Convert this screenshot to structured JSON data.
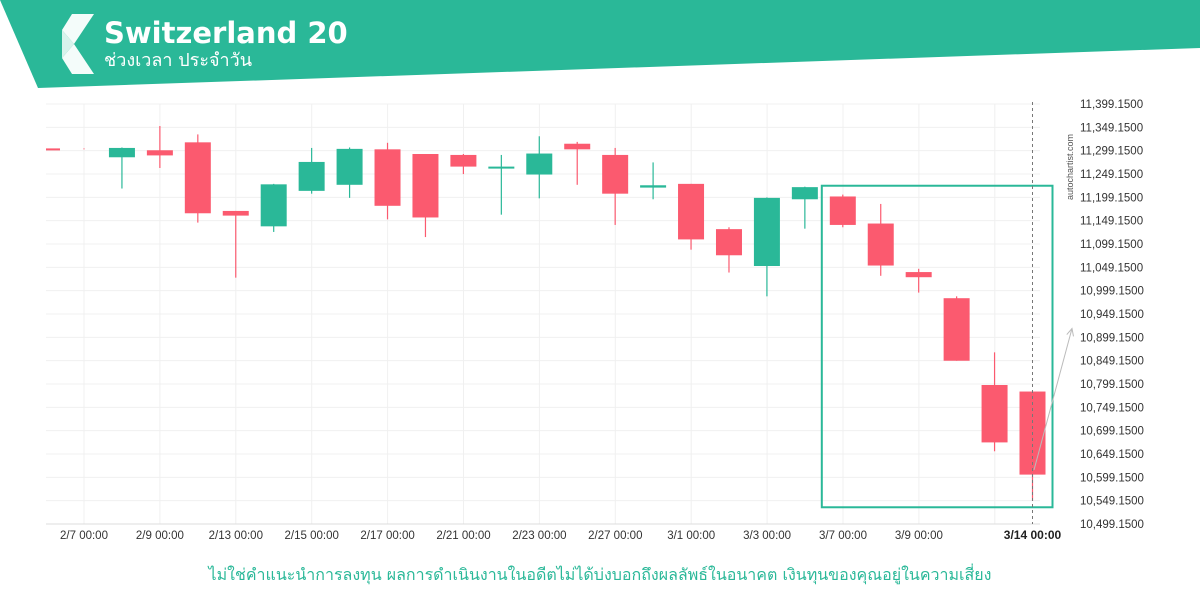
{
  "header": {
    "title": "Switzerland 20",
    "subtitle": "ช่วงเวลา ประจำวัน",
    "brand_color": "#2ab898"
  },
  "watermark": "autochartist.com",
  "disclaimer": "ไม่ใช่คำแนะนำการลงทุน ผลการดำเนินงานในอดีตไม่ได้บ่งบอกถึงผลลัพธ์ในอนาคต เงินทุนของคุณอยู่ในความเสี่ยง",
  "colors": {
    "up": "#2ab898",
    "down": "#fb5a6f",
    "pattern_box": "#2ab898",
    "grid": "#f0f0f0",
    "arrow": "#bbbbbb"
  },
  "chart_data": {
    "type": "candlestick",
    "y_axis": {
      "min": 10499.15,
      "max": 11399.15,
      "ticks": [
        "11,399.1500",
        "11,349.1500",
        "11,299.1500",
        "11,249.1500",
        "11,199.1500",
        "11,149.1500",
        "11,099.1500",
        "11,049.1500",
        "10,999.1500",
        "10,949.1500",
        "10,899.1500",
        "10,849.1500",
        "10,799.1500",
        "10,749.1500",
        "10,699.1500",
        "10,649.1500",
        "10,599.1500",
        "10,549.1500",
        "10,499.1500"
      ]
    },
    "x_labels": [
      "2/7 00:00",
      "2/9 00:00",
      "2/13 00:00",
      "2/15 00:00",
      "2/17 00:00",
      "2/21 00:00",
      "2/23 00:00",
      "2/27 00:00",
      "3/1 00:00",
      "3/3 00:00",
      "3/7 00:00",
      "3/9 00:00",
      "3/14 00:00"
    ],
    "candles": [
      {
        "open": 11304,
        "high": 11304,
        "low": 11302,
        "close": 11302
      },
      {
        "open": 11285,
        "high": 11306,
        "low": 11218,
        "close": 11305
      },
      {
        "open": 11300,
        "high": 11352,
        "low": 11262,
        "close": 11289
      },
      {
        "open": 11317,
        "high": 11334,
        "low": 11145,
        "close": 11165
      },
      {
        "open": 11170,
        "high": 11170,
        "low": 11027,
        "close": 11160
      },
      {
        "open": 11137,
        "high": 11228,
        "low": 11125,
        "close": 11227
      },
      {
        "open": 11213,
        "high": 11305,
        "low": 11207,
        "close": 11275
      },
      {
        "open": 11226,
        "high": 11306,
        "low": 11198,
        "close": 11303
      },
      {
        "open": 11302,
        "high": 11316,
        "low": 11152,
        "close": 11181
      },
      {
        "open": 11292,
        "high": 11292,
        "low": 11114,
        "close": 11156
      },
      {
        "open": 11290,
        "high": 11292,
        "low": 11249,
        "close": 11265
      },
      {
        "open": 11261,
        "high": 11290,
        "low": 11162,
        "close": 11265
      },
      {
        "open": 11248,
        "high": 11330,
        "low": 11197,
        "close": 11293
      },
      {
        "open": 11314,
        "high": 11318,
        "low": 11226,
        "close": 11302
      },
      {
        "open": 11290,
        "high": 11305,
        "low": 11140,
        "close": 11207
      },
      {
        "open": 11220,
        "high": 11274,
        "low": 11195,
        "close": 11225
      },
      {
        "open": 11228,
        "high": 11228,
        "low": 11087,
        "close": 11109
      },
      {
        "open": 11131,
        "high": 11135,
        "low": 11038,
        "close": 11075
      },
      {
        "open": 11052,
        "high": 11199,
        "low": 10987,
        "close": 11198
      },
      {
        "open": 11195,
        "high": 11222,
        "low": 11132,
        "close": 11221
      },
      {
        "open": 11201,
        "high": 11205,
        "low": 11135,
        "close": 11140
      },
      {
        "open": 11143,
        "high": 11185,
        "low": 11031,
        "close": 11053
      },
      {
        "open": 11039,
        "high": 11046,
        "low": 10995,
        "close": 11028
      },
      {
        "open": 10983,
        "high": 10987,
        "low": 10849,
        "close": 10849
      },
      {
        "open": 10797,
        "high": 10867,
        "low": 10655,
        "close": 10674
      },
      {
        "open": 10783,
        "high": 10783,
        "low": 10549,
        "close": 10605
      }
    ],
    "pattern_box": {
      "from_candle": 20,
      "to_candle": 25,
      "top": 11224,
      "bottom": 10535
    },
    "current_time_line": {
      "candle": 25
    },
    "projection_arrow": {
      "from_value": 10615,
      "to_value": 10918
    }
  }
}
